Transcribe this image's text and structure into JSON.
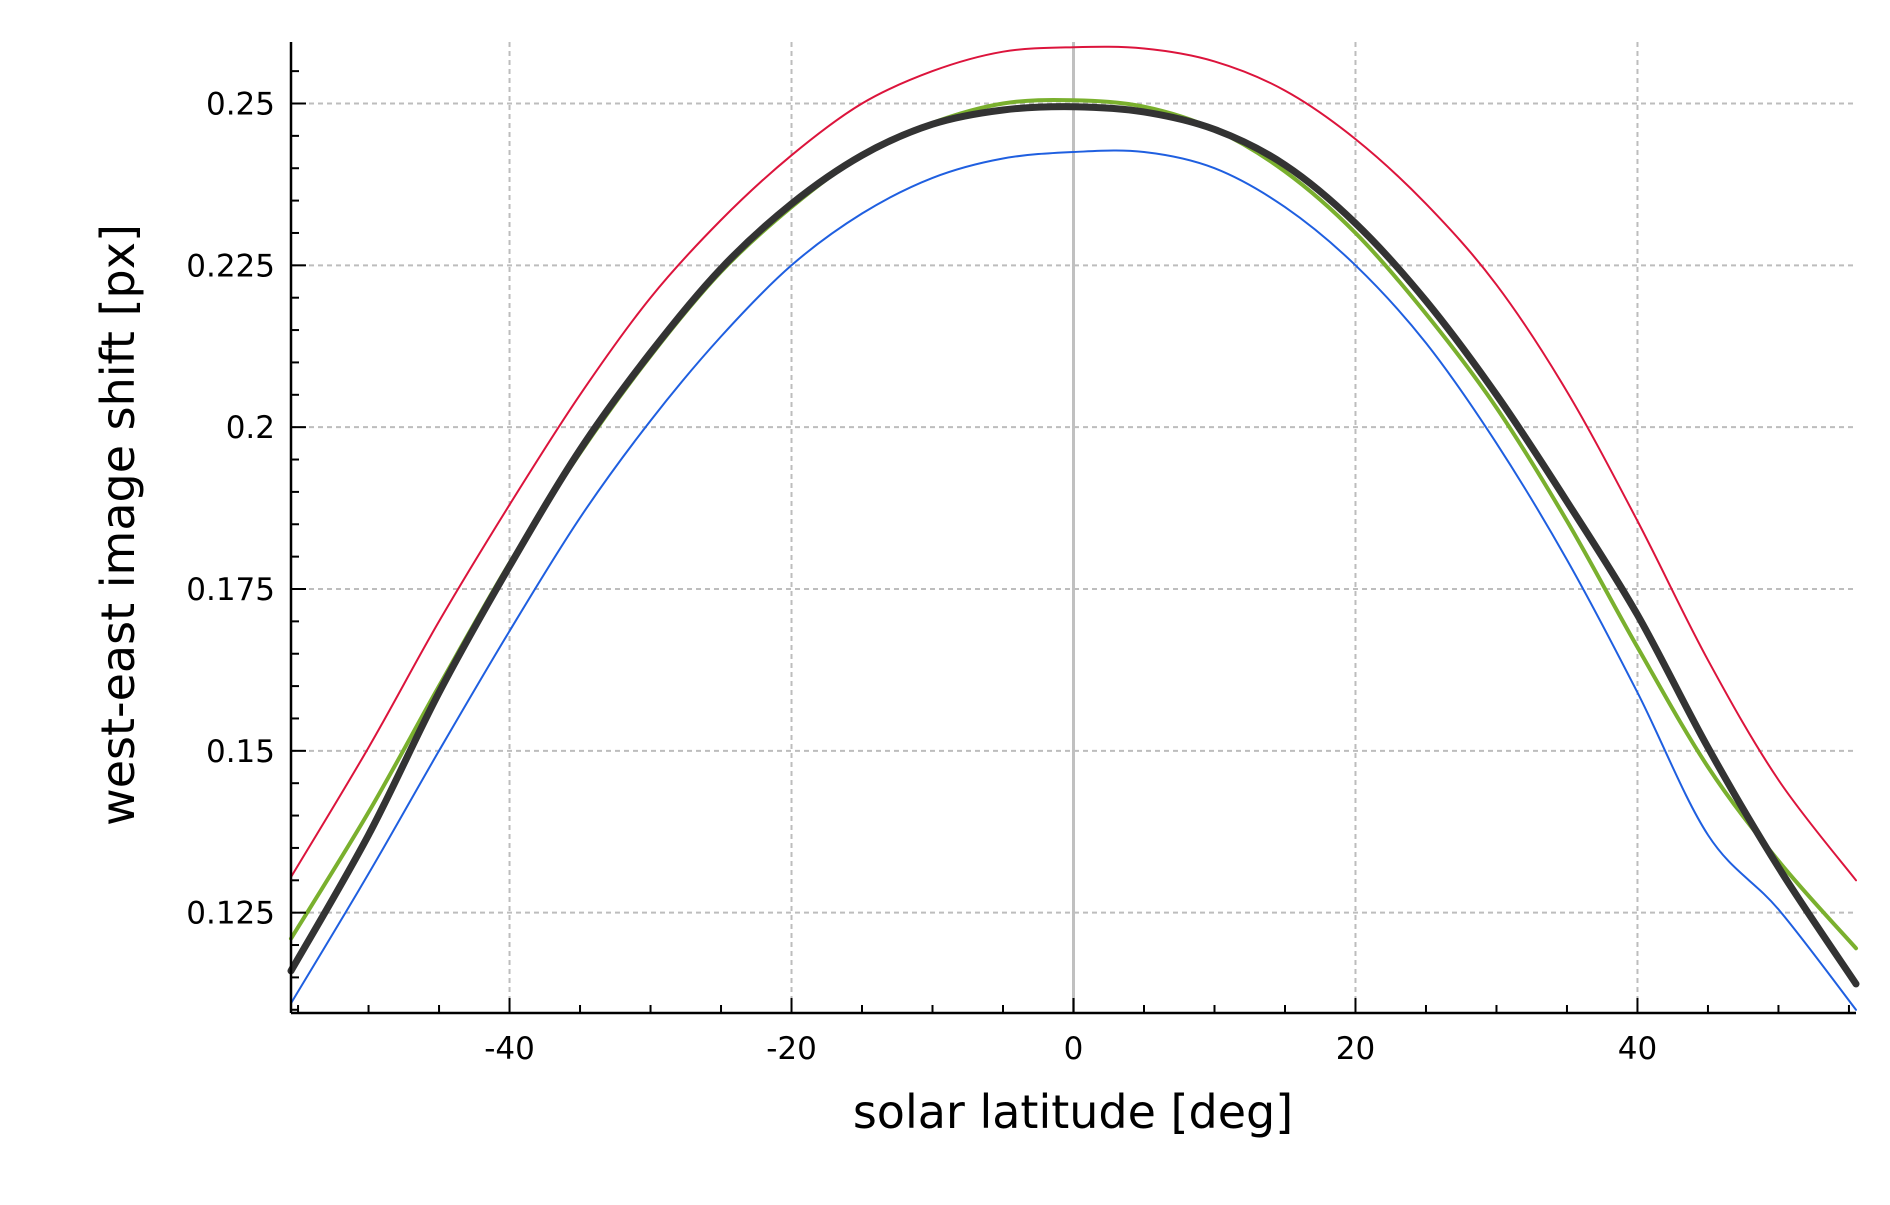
{
  "chart_data": {
    "type": "line",
    "title": "",
    "xlabel": "solar latitude [deg]",
    "ylabel": "west-east image shift [px]",
    "xlim": [
      -55.5,
      55.5
    ],
    "ylim": [
      0.1095,
      0.2595
    ],
    "xticks": [
      -40,
      -20,
      0,
      20,
      40
    ],
    "xtick_labels": [
      "-40",
      "-20",
      "0",
      "20",
      "40"
    ],
    "yticks": [
      0.125,
      0.15,
      0.175,
      0.2,
      0.225,
      0.25
    ],
    "ytick_labels": [
      "0.125",
      "0.15",
      "0.175",
      "0.2",
      "0.225",
      "0.25"
    ],
    "grid": true,
    "vertical_reference_line_x": 0,
    "colors": {
      "upper": "#dc143c",
      "fit": "#7ab02e",
      "mean": "#333333",
      "lower": "#1f5fe0",
      "grid": "#bdbdbd",
      "zero_line": "#c0c0c0"
    },
    "x": [
      -55.5,
      -50,
      -45,
      -40,
      -35,
      -30,
      -25,
      -20,
      -15,
      -10,
      -5,
      0,
      5,
      10,
      15,
      20,
      25,
      30,
      35,
      40,
      45,
      50,
      55.5
    ],
    "series": [
      {
        "key": "upper",
        "values": [
          0.1305,
          0.1505,
          0.17,
          0.188,
          0.205,
          0.22,
          0.232,
          0.242,
          0.25,
          0.255,
          0.258,
          0.2587,
          0.2585,
          0.2565,
          0.252,
          0.2445,
          0.2345,
          0.222,
          0.2055,
          0.1855,
          0.164,
          0.1455,
          0.13
        ]
      },
      {
        "key": "fit",
        "values": [
          0.121,
          0.1405,
          0.16,
          0.179,
          0.196,
          0.211,
          0.224,
          0.234,
          0.242,
          0.247,
          0.25,
          0.2505,
          0.2495,
          0.246,
          0.2395,
          0.23,
          0.2175,
          0.203,
          0.1855,
          0.166,
          0.1475,
          0.133,
          0.1195
        ]
      },
      {
        "key": "mean",
        "values": [
          0.116,
          0.137,
          0.159,
          0.1785,
          0.1965,
          0.2115,
          0.2245,
          0.2345,
          0.242,
          0.2468,
          0.249,
          0.2495,
          0.2487,
          0.246,
          0.2405,
          0.2315,
          0.2195,
          0.205,
          0.1885,
          0.171,
          0.1505,
          0.132,
          0.114
        ]
      },
      {
        "key": "lower",
        "values": [
          0.111,
          0.131,
          0.15,
          0.1685,
          0.186,
          0.201,
          0.214,
          0.225,
          0.233,
          0.2385,
          0.2415,
          0.2425,
          0.2425,
          0.24,
          0.234,
          0.225,
          0.213,
          0.1975,
          0.1795,
          0.159,
          0.137,
          0.1255,
          0.11
        ]
      }
    ]
  }
}
